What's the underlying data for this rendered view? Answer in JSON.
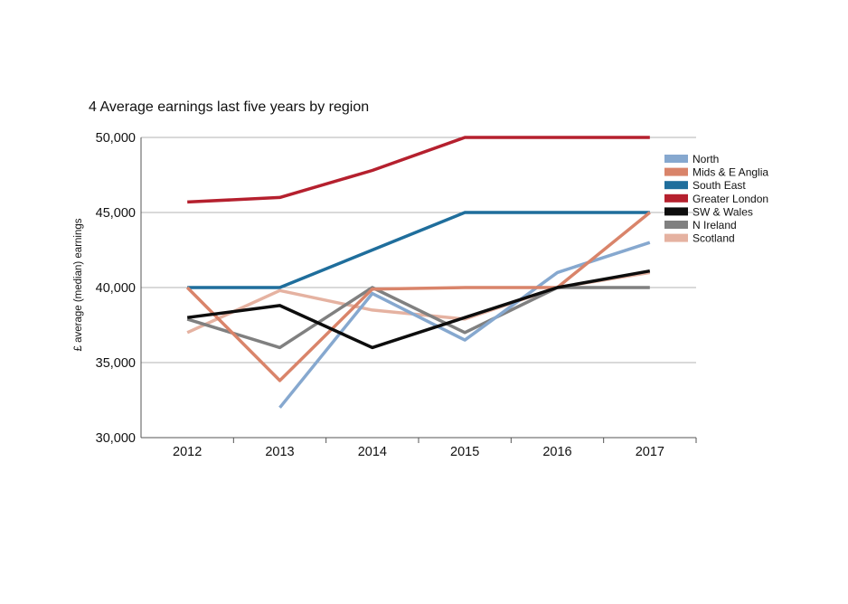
{
  "chart_data": {
    "type": "line",
    "title": "4 Average earnings last five years by region",
    "xlabel": "",
    "ylabel": "£ average (median) earnings",
    "categories": [
      "2012",
      "2013",
      "2014",
      "2015",
      "2016",
      "2017"
    ],
    "ylim": [
      30000,
      50000
    ],
    "yticks": [
      30000,
      35000,
      40000,
      45000,
      50000
    ],
    "ytick_labels": [
      "30,000",
      "35,000",
      "40,000",
      "45,000",
      "50,000"
    ],
    "grid": "horizontal",
    "legend_position": "top-right",
    "series": [
      {
        "name": "North",
        "color": "#86a8cf",
        "values": [
          null,
          32000,
          39600,
          36500,
          41000,
          43000
        ]
      },
      {
        "name": "Mids & E Anglia",
        "color": "#d9846a",
        "values": [
          40000,
          33800,
          39900,
          40000,
          40000,
          45000
        ]
      },
      {
        "name": "South East",
        "color": "#1f6e9c",
        "values": [
          40000,
          40000,
          42500,
          45000,
          45000,
          45000
        ]
      },
      {
        "name": "Greater London",
        "color": "#b5202e",
        "values": [
          45700,
          46000,
          47800,
          50000,
          50000,
          50000
        ]
      },
      {
        "name": "SW & Wales",
        "color": "#0d0d0d",
        "values": [
          38000,
          38800,
          36000,
          38000,
          40000,
          41100
        ]
      },
      {
        "name": "N Ireland",
        "color": "#808080",
        "values": [
          37900,
          36000,
          40000,
          37000,
          40000,
          40000
        ]
      },
      {
        "name": "Scotland",
        "color": "#e5b2a1",
        "values": [
          37000,
          39800,
          38500,
          37900,
          40000,
          41000
        ]
      }
    ]
  }
}
